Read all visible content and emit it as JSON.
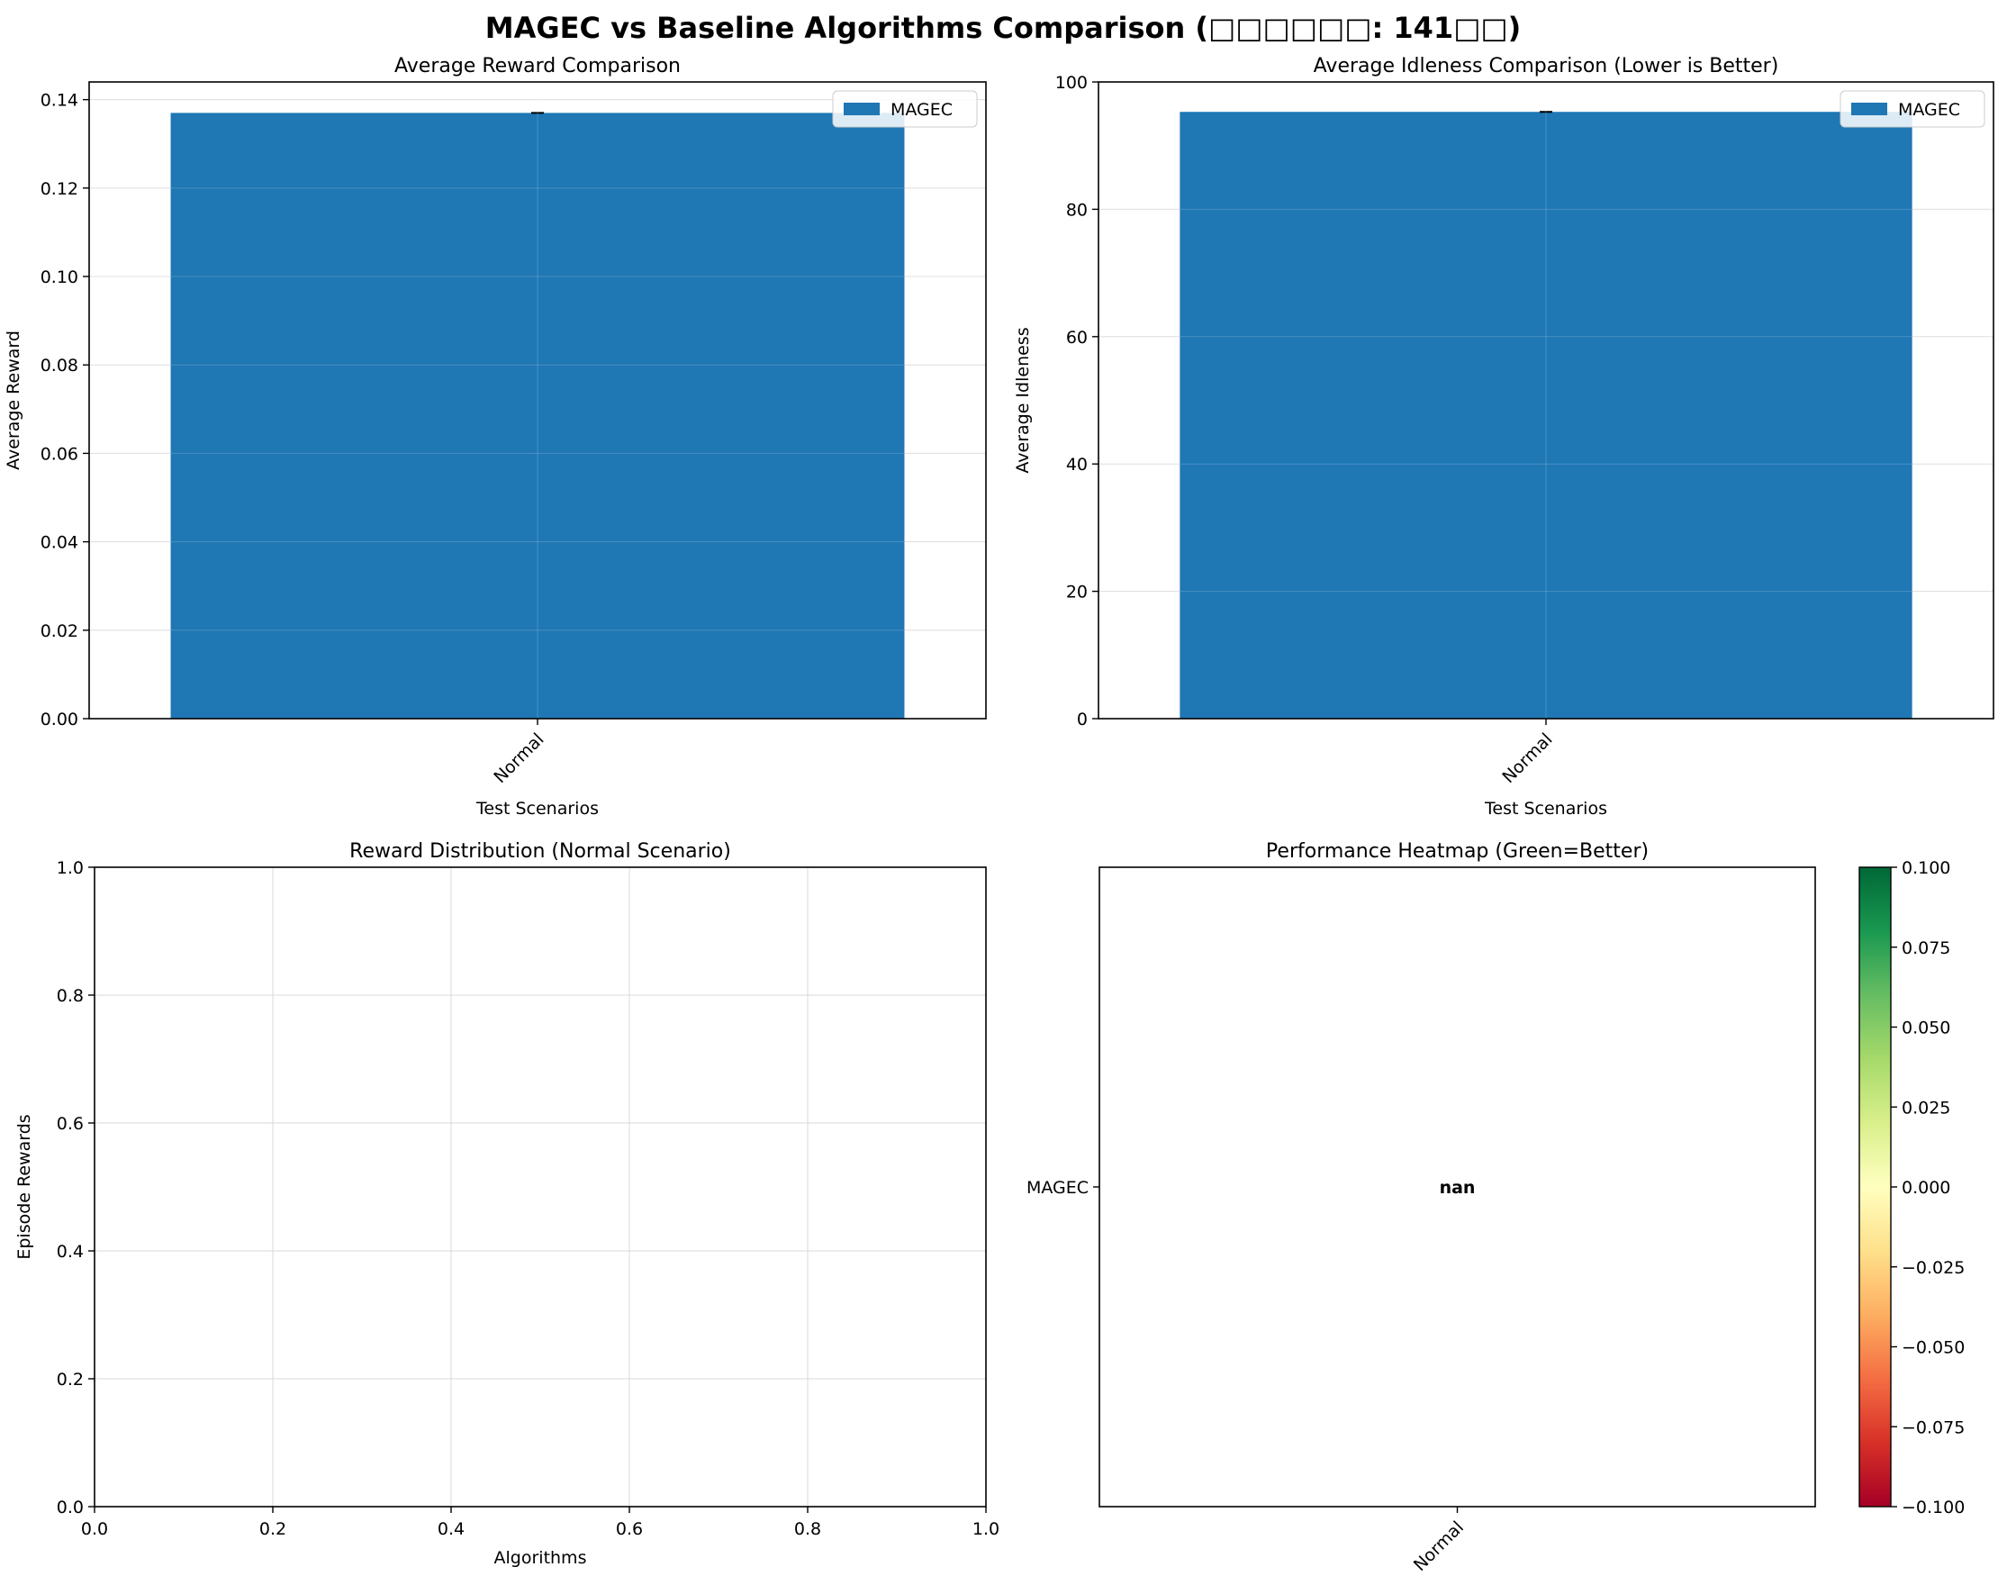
{
  "figure": {
    "suptitle": "MAGEC vs Baseline Algorithms Comparison (□□□□□□: 141□□)"
  },
  "colors": {
    "bar": "#1f77b4",
    "grid": "#d9d9d9",
    "axis": "#000000"
  },
  "chart_data": [
    {
      "type": "bar",
      "title": "Average Reward Comparison",
      "xlabel": "Test Scenarios",
      "ylabel": "Average Reward",
      "categories": [
        "Normal"
      ],
      "series": [
        {
          "name": "MAGEC",
          "values": [
            0.137
          ]
        }
      ],
      "ylim": [
        0,
        0.144
      ],
      "yticks": [
        0.0,
        0.02,
        0.04,
        0.06,
        0.08,
        0.1,
        0.12,
        0.14
      ],
      "ytick_labels": [
        "0.00",
        "0.02",
        "0.04",
        "0.06",
        "0.08",
        "0.10",
        "0.12",
        "0.14"
      ],
      "grid": true,
      "legend": "top-right",
      "error_bars": true
    },
    {
      "type": "bar",
      "title": "Average Idleness Comparison (Lower is Better)",
      "xlabel": "Test Scenarios",
      "ylabel": "Average Idleness",
      "categories": [
        "Normal"
      ],
      "series": [
        {
          "name": "MAGEC",
          "values": [
            95.3
          ]
        }
      ],
      "ylim": [
        0,
        100
      ],
      "yticks": [
        0,
        20,
        40,
        60,
        80,
        100
      ],
      "ytick_labels": [
        "0",
        "20",
        "40",
        "60",
        "80",
        "100"
      ],
      "grid": true,
      "legend": "top-right",
      "error_bars": true
    },
    {
      "type": "scatter",
      "title": "Reward Distribution (Normal Scenario)",
      "xlabel": "Algorithms",
      "ylabel": "Episode Rewards",
      "xlim": [
        0,
        1
      ],
      "ylim": [
        0,
        1
      ],
      "xticks": [
        0.0,
        0.2,
        0.4,
        0.6,
        0.8,
        1.0
      ],
      "xtick_labels": [
        "0.0",
        "0.2",
        "0.4",
        "0.6",
        "0.8",
        "1.0"
      ],
      "yticks": [
        0.0,
        0.2,
        0.4,
        0.6,
        0.8,
        1.0
      ],
      "ytick_labels": [
        "0.0",
        "0.2",
        "0.4",
        "0.6",
        "0.8",
        "1.0"
      ],
      "grid": true,
      "points": []
    },
    {
      "type": "heatmap",
      "title": "Performance Heatmap (Green=Better)",
      "rows": [
        "MAGEC"
      ],
      "columns": [
        "Normal"
      ],
      "cell_labels": [
        [
          "nan"
        ]
      ],
      "colormap": "RdYlGn",
      "colorbar_range": [
        -0.1,
        0.1
      ],
      "colorbar_ticks": [
        0.1,
        0.075,
        0.05,
        0.025,
        0.0,
        -0.025,
        -0.05,
        -0.075,
        -0.1
      ],
      "colorbar_tick_labels": [
        "0.100",
        "0.075",
        "0.050",
        "0.025",
        "0.000",
        "−0.025",
        "−0.050",
        "−0.075",
        "−0.100"
      ],
      "colorbar_colors": [
        "#006837",
        "#1a9850",
        "#66bd63",
        "#a6d96a",
        "#d9ef8b",
        "#ffffbf",
        "#fee08b",
        "#fdae61",
        "#f46d43",
        "#d73027",
        "#a50026"
      ]
    }
  ]
}
